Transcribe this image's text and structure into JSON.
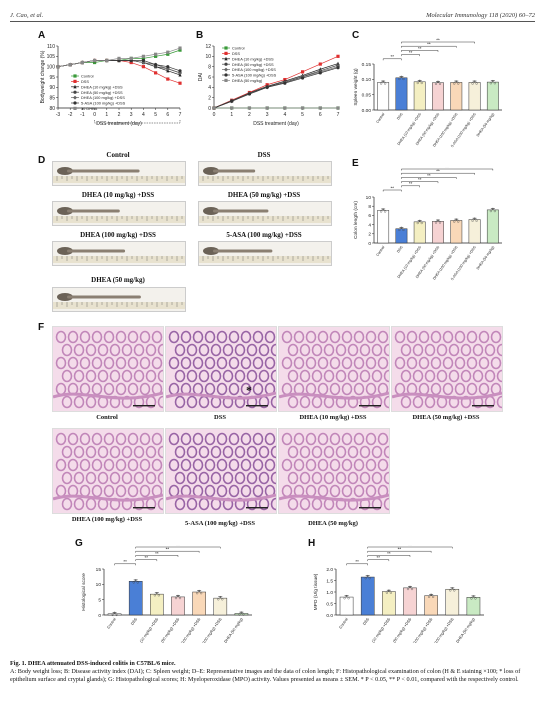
{
  "header": {
    "left": "J. Cao, et al.",
    "right": "Molecular Immunology 118 (2020) 60–72"
  },
  "panels": {
    "A": "A",
    "B": "B",
    "C": "C",
    "D": "D",
    "E": "E",
    "F": "F",
    "G": "G",
    "H": "H"
  },
  "colors": {
    "control": "#3a9a3a",
    "dss": "#e03030",
    "gray": "#555555"
  },
  "chart_data": [
    {
      "id": "A",
      "type": "line",
      "ylabel": "Bodyweight change (%)",
      "xlabel": "DSS treatment (day)",
      "x": [
        -3,
        -2,
        -1,
        0,
        1,
        2,
        3,
        4,
        5,
        6,
        7
      ],
      "xticks": [
        "-3",
        "-2",
        "-1",
        "0",
        "1",
        "2",
        "3",
        "4",
        "5",
        "6",
        "7"
      ],
      "ylim": [
        80,
        110
      ],
      "yticks": [
        "80",
        "85",
        "90",
        "95",
        "100",
        "105",
        "110"
      ],
      "legend": [
        "Control",
        "DSS",
        "DHEA (10 mg/kg) +DSS",
        "DHEA (50 mg/kg) +DSS",
        "DHEA (100 mg/kg) +DSS",
        "5-ASA (100 mg/kg) +DSS",
        "50 DHEA"
      ],
      "series": [
        {
          "name": "Control",
          "values": [
            100,
            101,
            102,
            102,
            103,
            103,
            104,
            104,
            105,
            106,
            108
          ]
        },
        {
          "name": "DSS",
          "values": [
            100,
            101,
            102,
            103,
            103,
            103,
            102,
            100,
            97,
            94,
            92
          ]
        },
        {
          "name": "DHEA (10 mg/kg) +DSS",
          "values": [
            100,
            101,
            102,
            103,
            103,
            103,
            103,
            102,
            100,
            98,
            96
          ]
        },
        {
          "name": "DHEA (50 mg/kg) +DSS",
          "values": [
            100,
            101,
            102,
            103,
            103,
            103,
            103,
            102,
            100,
            99,
            97
          ]
        },
        {
          "name": "DHEA (100 mg/kg) +DSS",
          "values": [
            100,
            101,
            102,
            103,
            103,
            103,
            103,
            102,
            101,
            99,
            97
          ]
        },
        {
          "name": "5-ASA (100 mg/kg) +DSS",
          "values": [
            100,
            101,
            102,
            103,
            103,
            103,
            103,
            103,
            101,
            100,
            98
          ]
        },
        {
          "name": "50 DHEA",
          "values": [
            100,
            101,
            102,
            103,
            103,
            104,
            104,
            105,
            106,
            107,
            109
          ]
        }
      ]
    },
    {
      "id": "B",
      "type": "line",
      "ylabel": "DAI",
      "xlabel": "DSS treatment (day)",
      "x": [
        0,
        1,
        2,
        3,
        4,
        5,
        6,
        7
      ],
      "xticks": [
        "0",
        "1",
        "2",
        "3",
        "4",
        "5",
        "6",
        "7"
      ],
      "ylim": [
        0,
        12
      ],
      "yticks": [
        "0",
        "2",
        "4",
        "6",
        "8",
        "10",
        "12"
      ],
      "legend": [
        "Control",
        "DSS",
        "DHEA (10 mg/kg) +DSS",
        "DHEA (50 mg/kg) +DSS",
        "DHEA (100 mg/kg) +DSS",
        "5-ASA (100 mg/kg) +DSS",
        "DHEA (50 mg/kg)"
      ],
      "series": [
        {
          "name": "Control",
          "values": [
            0,
            0,
            0,
            0,
            0,
            0,
            0,
            0
          ]
        },
        {
          "name": "DSS",
          "values": [
            0,
            1.5,
            3,
            4.5,
            5.5,
            7,
            8.5,
            10
          ]
        },
        {
          "name": "DHEA (10 mg/kg) +DSS",
          "values": [
            0,
            1.4,
            2.9,
            4.2,
            5.2,
            6.3,
            7.5,
            8.6
          ]
        },
        {
          "name": "DHEA (50 mg/kg) +DSS",
          "values": [
            0,
            1.4,
            2.8,
            4.1,
            5,
            6.1,
            7.2,
            8.3
          ]
        },
        {
          "name": "DHEA (100 mg/kg) +DSS",
          "values": [
            0,
            1.3,
            2.8,
            4,
            4.9,
            6,
            7,
            8
          ]
        },
        {
          "name": "5-ASA (100 mg/kg) +DSS",
          "values": [
            0,
            1.3,
            2.7,
            4,
            4.8,
            5.8,
            6.8,
            7.8
          ]
        },
        {
          "name": "DHEA (50 mg/kg)",
          "values": [
            0,
            0,
            0,
            0,
            0,
            0,
            0,
            0
          ]
        }
      ]
    },
    {
      "id": "C",
      "type": "bar",
      "ylabel": "Spleen weight (g)",
      "ylim": [
        0,
        0.15
      ],
      "yticks": [
        "0.00",
        "0.05",
        "0.10",
        "0.15"
      ],
      "categories": [
        "Control",
        "DSS",
        "DHEA (10 mg/kg) +DSS",
        "DHEA (50 mg/kg) +DSS",
        "DHEA (100 mg/kg) +DSS",
        "5-ASA (100 mg/kg) +DSS",
        "DHEA (50 mg/kg)"
      ],
      "values": [
        0.09,
        0.105,
        0.092,
        0.089,
        0.09,
        0.09,
        0.091
      ],
      "sig": [
        "**",
        "**",
        "**",
        "**",
        "**"
      ]
    },
    {
      "id": "E",
      "type": "bar",
      "ylabel": "Colon length (cm)",
      "ylim": [
        0,
        10
      ],
      "yticks": [
        "0",
        "2",
        "4",
        "6",
        "8",
        "10"
      ],
      "categories": [
        "Control",
        "DSS",
        "DHEA (10 mg/kg) +DSS",
        "DHEA (50 mg/kg) +DSS",
        "DHEA (100 mg/kg) +DSS",
        "5-ASA (100 mg/kg) +DSS",
        "DHEA (50 mg/kg)"
      ],
      "values": [
        7.1,
        3.1,
        4.6,
        4.7,
        4.9,
        5.1,
        7.2
      ],
      "sig": [
        "**",
        "**",
        "**",
        "**",
        "**",
        "**"
      ]
    },
    {
      "id": "G",
      "type": "bar",
      "ylabel": "Histological score",
      "ylim": [
        0,
        15
      ],
      "yticks": [
        "0",
        "5",
        "10",
        "15"
      ],
      "categories": [
        "Control",
        "DSS",
        "DHEA (10 mg/kg) +DSS",
        "DHEA (50 mg/kg) +DSS",
        "DHEA (100 mg/kg) +DSS",
        "5-ASA (100 mg/kg) +DSS",
        "DHEA (50 mg/kg)"
      ],
      "values": [
        0.4,
        11,
        6.8,
        5.9,
        7.5,
        5.5,
        0.5
      ],
      "sig": [
        "**",
        "**",
        "**",
        "**",
        "**"
      ]
    },
    {
      "id": "H",
      "type": "bar",
      "ylabel": "MPO (U/g tissue)",
      "ylim": [
        0,
        2
      ],
      "yticks": [
        "0.0",
        "0.5",
        "1.0",
        "1.5",
        "2.0"
      ],
      "categories": [
        "Control",
        "DSS",
        "DHEA (10 mg/kg) +DSS",
        "DHEA (50 mg/kg) +DSS",
        "DHEA (100 mg/kg) +DSS",
        "5-ASA (100 mg/kg) +DSS",
        "DHEA (50 mg/kg)"
      ],
      "values": [
        0.78,
        1.65,
        1.02,
        1.18,
        0.84,
        1.12,
        0.77
      ],
      "sig": [
        "**",
        "**",
        "**",
        "**",
        "**"
      ]
    }
  ],
  "colons": [
    {
      "title": "Control",
      "len": 0.55
    },
    {
      "title": "DSS",
      "len": 0.32
    },
    {
      "title": "DHEA (10 mg/kg) +DSS",
      "len": 0.4
    },
    {
      "title": "DHEA (50 mg/kg) +DSS",
      "len": 0.42
    },
    {
      "title": "DHEA (100 mg/kg) +DSS",
      "len": 0.44
    },
    {
      "title": "5-ASA (100 mg/kg) +DSS",
      "len": 0.45
    },
    {
      "title": "DHEA (50 mg/kg)",
      "len": 0.56
    },
    {
      "title": "",
      "len": 0.58
    }
  ],
  "histology": [
    {
      "title": "Control",
      "star": ""
    },
    {
      "title": "DSS",
      "star": "*"
    },
    {
      "title": "DHEA (10 mg/kg) +DSS",
      "star": ""
    },
    {
      "title": "DHEA (50 mg/kg) +DSS",
      "star": ""
    },
    {
      "title": "DHEA (100 mg/kg) +DSS",
      "star": ""
    },
    {
      "title": "5-ASA (100 mg/kg) +DSS",
      "star": ""
    },
    {
      "title": "DHEA (50 mg/kg)",
      "star": ""
    }
  ],
  "caption": {
    "title": "Fig. 1. DHEA attenuated DSS-induced colitis in C57BL/6 mice.",
    "body": "A: Body weight loss; B: Disease activity index (DAI); C: Spleen weight; D–E: Representative images and the data of colon length; F: Histopathological examination of colon (H & E staining ×100; * loss of epithelium surface and cryptal glands); G: Histopathological scores; H: Myeloperoxidase (MPO) activity. Values presented as means ± SEM. * P < 0.05, ** P < 0.01, compared with the respectively control."
  }
}
